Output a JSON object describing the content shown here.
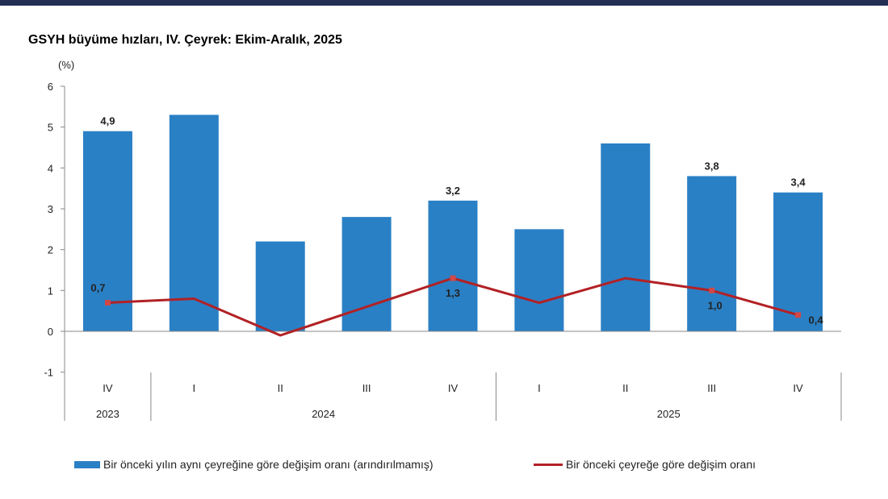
{
  "colors": {
    "topbar": "#232f55",
    "bar": "#2a80c5",
    "line": "#b22125",
    "axis": "#888888"
  },
  "chart_data": {
    "type": "bar+line",
    "title": "GSYH büyüme hızları, IV. Çeyrek: Ekim-Aralık, 2025",
    "ylabel": "(%)",
    "ylim": [
      -1,
      6
    ],
    "yticks": [
      "-1",
      "0",
      "1",
      "2",
      "3",
      "4",
      "5",
      "6"
    ],
    "categories": [
      "IV",
      "I",
      "II",
      "III",
      "IV",
      "I",
      "II",
      "III",
      "IV"
    ],
    "groups": [
      {
        "label": "2023",
        "span": 1
      },
      {
        "label": "2024",
        "span": 4
      },
      {
        "label": "2025",
        "span": 4
      }
    ],
    "grid": false,
    "legend": "bottom",
    "series": [
      {
        "name": "Bir önceki yılın aynı çeyreğine göre değişim oranı (arındırılmamış)",
        "type": "bar",
        "values": [
          4.9,
          5.3,
          2.2,
          2.8,
          3.2,
          2.5,
          4.6,
          3.8,
          3.4
        ],
        "labels": [
          "4,9",
          null,
          null,
          null,
          "3,2",
          null,
          null,
          "3,8",
          "3,4"
        ]
      },
      {
        "name": "Bir önceki çeyreğe göre değişim oranı",
        "type": "line",
        "values": [
          0.7,
          0.8,
          -0.1,
          0.6,
          1.3,
          0.7,
          1.3,
          1.0,
          0.4
        ],
        "labels": [
          "0,7",
          null,
          null,
          null,
          "1,3",
          null,
          null,
          "1,0",
          "0,4"
        ]
      }
    ]
  }
}
